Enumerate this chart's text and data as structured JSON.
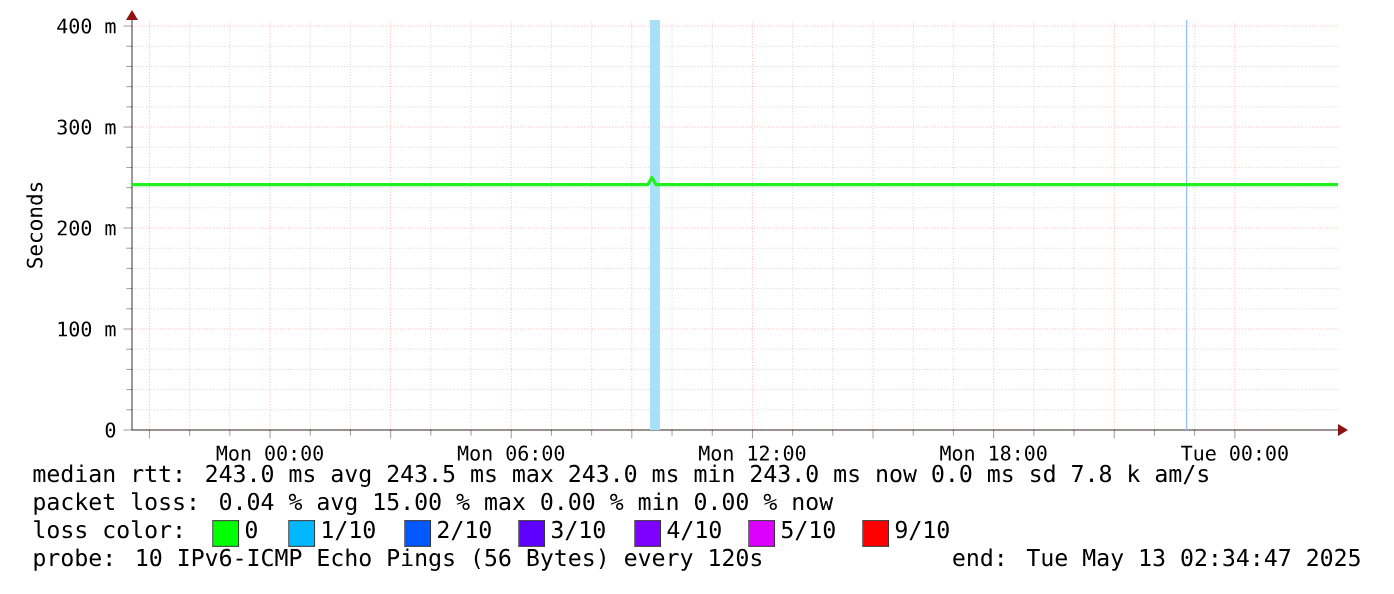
{
  "chart_data": {
    "type": "line",
    "ylabel": "Seconds",
    "x": [
      "2025-05-11T20:34",
      "2025-05-12T09:24",
      "2025-05-12T09:30",
      "2025-05-12T09:36",
      "2025-05-13T02:34"
    ],
    "series": [
      {
        "color": "#20f020",
        "values": [
          243,
          243,
          250,
          243,
          243
        ]
      }
    ],
    "xlim": [
      "2025-05-11T20:34",
      "2025-05-13T02:34"
    ],
    "xticks": [
      {
        "value": "2025-05-11T21:00",
        "label": null
      },
      {
        "value": "2025-05-12T00:00",
        "label": "Mon 00:00"
      },
      {
        "value": "2025-05-12T03:00",
        "label": null
      },
      {
        "value": "2025-05-12T06:00",
        "label": "Mon 06:00"
      },
      {
        "value": "2025-05-12T09:00",
        "label": null
      },
      {
        "value": "2025-05-12T12:00",
        "label": "Mon 12:00"
      },
      {
        "value": "2025-05-12T15:00",
        "label": null
      },
      {
        "value": "2025-05-12T18:00",
        "label": "Mon 18:00"
      },
      {
        "value": "2025-05-12T21:00",
        "label": null
      },
      {
        "value": "2025-05-13T00:00",
        "label": "Tue 00:00"
      }
    ],
    "ylim": [
      0,
      406
    ],
    "yticks": [
      {
        "value": 0,
        "label": "0"
      },
      {
        "value": 100,
        "label": "100 m"
      },
      {
        "value": 200,
        "label": "200 m"
      },
      {
        "value": 300,
        "label": "300 m"
      },
      {
        "value": 400,
        "label": "400 m"
      }
    ],
    "grid": true,
    "bands": [
      {
        "axis": "x",
        "from": "2025-05-12T09:27",
        "to": "2025-05-12T09:42",
        "color": "#a8e0f8"
      },
      {
        "axis": "x",
        "from": "2025-05-12T22:47",
        "to": "2025-05-12T22:49",
        "color": "#9cc0ff"
      }
    ],
    "annotations": [
      "median rtt: 243.0 ms avg 243.5 ms max 243.0 ms min 243.0 ms now 0.0 ms sd 7.8 k am/s",
      "packet loss: 0.04 % avg 15.00 % max 0.00 % min 0.00 % now",
      "loss color:",
      "0",
      "1/10",
      "2/10",
      "3/10",
      "4/10",
      "5/10",
      "9/10",
      "probe: 10 IPv6-ICMP Echo Pings (56 Bytes) every 120s",
      "end: Tue May 13 02:34:47 2025"
    ]
  }
}
